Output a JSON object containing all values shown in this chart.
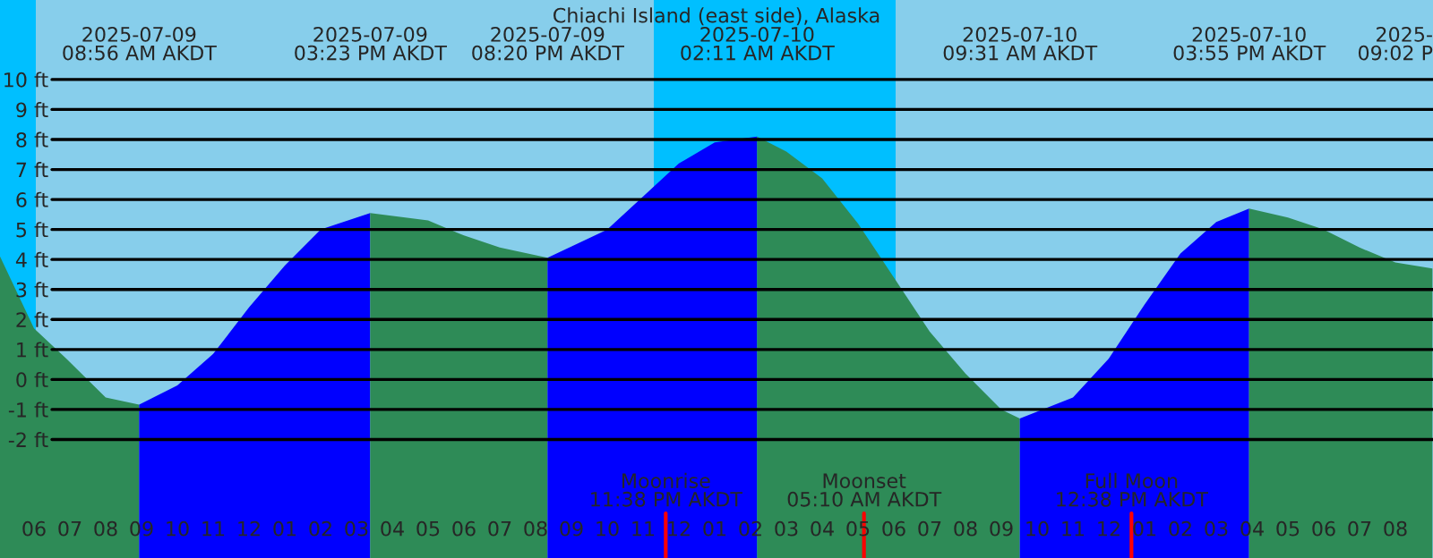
{
  "chart_data": {
    "type": "area",
    "title": "Chiachi Island (east side), Alaska",
    "xlim": [
      "2025-07-09T05:03",
      "2025-07-10T21:03"
    ],
    "ylim": [
      -5.95,
      12.65
    ],
    "yticks": [
      {
        "value": -2,
        "label": "-2 ft"
      },
      {
        "value": -1,
        "label": "-1 ft"
      },
      {
        "value": 0,
        "label": "0 ft"
      },
      {
        "value": 1,
        "label": "1 ft"
      },
      {
        "value": 2,
        "label": "2 ft"
      },
      {
        "value": 3,
        "label": "3 ft"
      },
      {
        "value": 4,
        "label": "4 ft"
      },
      {
        "value": 5,
        "label": "5 ft"
      },
      {
        "value": 6,
        "label": "6 ft"
      },
      {
        "value": 7,
        "label": "7 ft"
      },
      {
        "value": 8,
        "label": "8 ft"
      },
      {
        "value": 9,
        "label": "9 ft"
      },
      {
        "value": 10,
        "label": "10 ft"
      }
    ],
    "xticks": [
      {
        "value": "2025-07-09T06:00",
        "label": "06"
      },
      {
        "value": "2025-07-09T07:00",
        "label": "07"
      },
      {
        "value": "2025-07-09T08:00",
        "label": "08"
      },
      {
        "value": "2025-07-09T09:00",
        "label": "09"
      },
      {
        "value": "2025-07-09T10:00",
        "label": "10"
      },
      {
        "value": "2025-07-09T11:00",
        "label": "11"
      },
      {
        "value": "2025-07-09T12:00",
        "label": "12"
      },
      {
        "value": "2025-07-09T13:00",
        "label": "01"
      },
      {
        "value": "2025-07-09T14:00",
        "label": "02"
      },
      {
        "value": "2025-07-09T15:00",
        "label": "03"
      },
      {
        "value": "2025-07-09T16:00",
        "label": "04"
      },
      {
        "value": "2025-07-09T17:00",
        "label": "05"
      },
      {
        "value": "2025-07-09T18:00",
        "label": "06"
      },
      {
        "value": "2025-07-09T19:00",
        "label": "07"
      },
      {
        "value": "2025-07-09T20:00",
        "label": "08"
      },
      {
        "value": "2025-07-09T21:00",
        "label": "09"
      },
      {
        "value": "2025-07-09T22:00",
        "label": "10"
      },
      {
        "value": "2025-07-09T23:00",
        "label": "11"
      },
      {
        "value": "2025-07-10T00:00",
        "label": "12"
      },
      {
        "value": "2025-07-10T01:00",
        "label": "01"
      },
      {
        "value": "2025-07-10T02:00",
        "label": "02"
      },
      {
        "value": "2025-07-10T03:00",
        "label": "03"
      },
      {
        "value": "2025-07-10T04:00",
        "label": "04"
      },
      {
        "value": "2025-07-10T05:00",
        "label": "05"
      },
      {
        "value": "2025-07-10T06:00",
        "label": "06"
      },
      {
        "value": "2025-07-10T07:00",
        "label": "07"
      },
      {
        "value": "2025-07-10T08:00",
        "label": "08"
      },
      {
        "value": "2025-07-10T09:00",
        "label": "09"
      },
      {
        "value": "2025-07-10T10:00",
        "label": "10"
      },
      {
        "value": "2025-07-10T11:00",
        "label": "11"
      },
      {
        "value": "2025-07-10T12:00",
        "label": "12"
      },
      {
        "value": "2025-07-10T13:00",
        "label": "01"
      },
      {
        "value": "2025-07-10T14:00",
        "label": "02"
      },
      {
        "value": "2025-07-10T15:00",
        "label": "03"
      },
      {
        "value": "2025-07-10T16:00",
        "label": "04"
      },
      {
        "value": "2025-07-10T17:00",
        "label": "05"
      },
      {
        "value": "2025-07-10T18:00",
        "label": "06"
      },
      {
        "value": "2025-07-10T19:00",
        "label": "07"
      },
      {
        "value": "2025-07-10T20:00",
        "label": "08"
      },
      {
        "value": "2025-07-10T21:00",
        "label": null
      }
    ],
    "grid": "y",
    "series": [
      {
        "color": "#2e8b57",
        "x": [
          "2025-07-09T05:03",
          "2025-07-09T06:00",
          "2025-07-09T06:54",
          "2025-07-09T08:00",
          "2025-07-09T08:56"
        ],
        "values": [
          4.1,
          1.7,
          0.7,
          -0.6,
          -0.84
        ]
      },
      {
        "color": "#0000ff",
        "x": [
          "2025-07-09T08:56",
          "2025-07-09T10:00",
          "2025-07-09T11:00",
          "2025-07-09T12:00",
          "2025-07-09T13:00",
          "2025-07-09T14:00",
          "2025-07-09T15:23"
        ],
        "values": [
          -0.84,
          -0.2,
          0.85,
          2.4,
          3.8,
          5.0,
          5.55
        ]
      },
      {
        "color": "#2e8b57",
        "x": [
          "2025-07-09T15:23",
          "2025-07-09T17:00",
          "2025-07-09T18:00",
          "2025-07-09T19:00",
          "2025-07-09T20:20"
        ],
        "values": [
          5.55,
          5.3,
          4.8,
          4.4,
          4.06
        ]
      },
      {
        "color": "#0000ff",
        "x": [
          "2025-07-09T20:20",
          "2025-07-09T22:00",
          "2025-07-09T23:00",
          "2025-07-10T00:00",
          "2025-07-10T01:00",
          "2025-07-10T02:11"
        ],
        "values": [
          4.06,
          5.0,
          6.1,
          7.2,
          7.9,
          8.1
        ]
      },
      {
        "color": "#2e8b57",
        "x": [
          "2025-07-10T02:11",
          "2025-07-10T03:00",
          "2025-07-10T04:00",
          "2025-07-10T05:00",
          "2025-07-10T06:00",
          "2025-07-10T07:00",
          "2025-07-10T08:00",
          "2025-07-10T09:00",
          "2025-07-10T09:31"
        ],
        "values": [
          8.1,
          7.6,
          6.7,
          5.2,
          3.4,
          1.6,
          0.2,
          -1.0,
          -1.3
        ]
      },
      {
        "color": "#0000ff",
        "x": [
          "2025-07-10T09:31",
          "2025-07-10T11:00",
          "2025-07-10T12:00",
          "2025-07-10T13:00",
          "2025-07-10T14:00",
          "2025-07-10T15:00",
          "2025-07-10T15:55"
        ],
        "values": [
          -1.3,
          -0.6,
          0.7,
          2.5,
          4.2,
          5.25,
          5.7
        ]
      },
      {
        "color": "#2e8b57",
        "x": [
          "2025-07-10T15:55",
          "2025-07-10T17:00",
          "2025-07-10T18:00",
          "2025-07-10T19:00",
          "2025-07-10T20:00",
          "2025-07-10T21:02"
        ],
        "values": [
          5.7,
          5.4,
          5.0,
          4.4,
          3.9,
          3.7
        ]
      }
    ],
    "bands": [
      {
        "axis": "x",
        "from": "2025-07-09T05:03",
        "to": "2025-07-09T06:03",
        "color": "#00bfff"
      },
      {
        "axis": "x",
        "from": "2025-07-09T23:18",
        "to": "2025-07-10T06:03",
        "color": "#00bfff"
      }
    ],
    "ref_lines": [
      {
        "axis": "x",
        "value": "2025-07-09T23:38",
        "label": "Moonrise\n11:38 PM AKDT",
        "color": "#ff0000"
      },
      {
        "axis": "x",
        "value": "2025-07-10T05:10",
        "label": "Moonset\n05:10 AM AKDT",
        "color": "#ff0000"
      },
      {
        "axis": "x",
        "value": "2025-07-10T12:38",
        "label": "Full Moon\n12:38 PM AKDT",
        "color": "#ff0000"
      }
    ],
    "annotations": [
      "2025-07-09\n08:56 AM AKDT",
      "2025-07-09\n03:23 PM AKDT",
      "2025-07-09\n08:20 PM AKDT",
      "2025-07-10\n02:11 AM AKDT",
      "2025-07-10\n09:31 AM AKDT",
      "2025-07-10\n03:55 PM AKDT",
      "2025-\n09:02 P"
    ]
  }
}
